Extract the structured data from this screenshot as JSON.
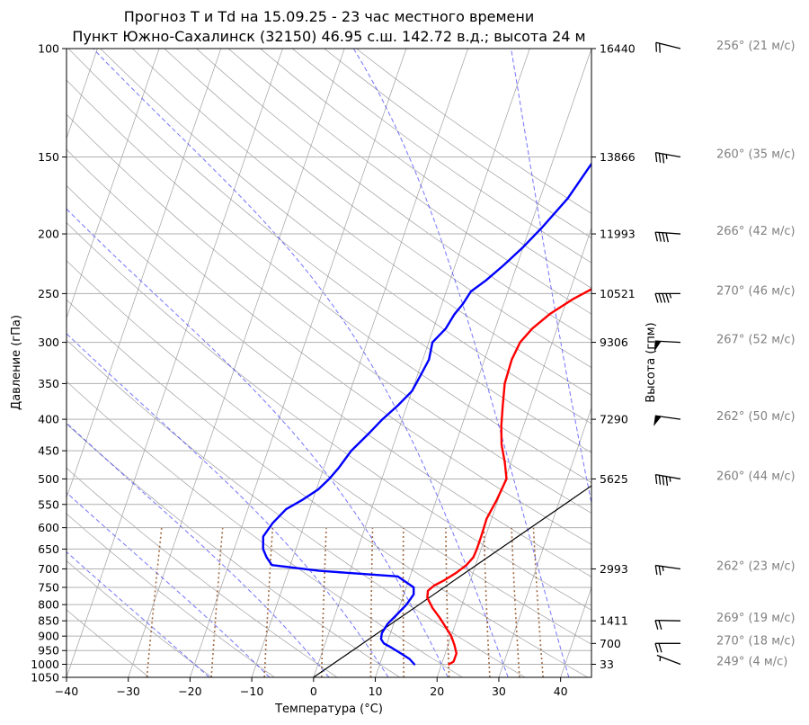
{
  "title_line1": "Прогноз T и Td на 15.09.25 - 23 час местного времени",
  "title_line2": "Пункт Южно-Сахалинск (32150) 46.95 с.ш. 142.72 в.д.; высота 24 м",
  "chart_data": {
    "type": "line",
    "subtype": "skew-T log-P diagram",
    "xlabel": "Температура (°C)",
    "ylabel": "Давление (гПа)",
    "y2label": "Высота (гпм)",
    "xlim": [
      -40,
      45
    ],
    "ylim": [
      1050,
      100
    ],
    "y_scale": "log",
    "x_ticks": [
      -40,
      -30,
      -20,
      -10,
      0,
      10,
      20,
      30,
      40
    ],
    "y_ticks": [
      100,
      150,
      200,
      250,
      300,
      350,
      400,
      450,
      500,
      550,
      600,
      650,
      700,
      750,
      800,
      850,
      900,
      950,
      1000,
      1050
    ],
    "height_ticks": [
      {
        "p": 100,
        "label": "16440"
      },
      {
        "p": 150,
        "label": "13866"
      },
      {
        "p": 200,
        "label": "11993"
      },
      {
        "p": 250,
        "label": "10521"
      },
      {
        "p": 300,
        "label": "9306"
      },
      {
        "p": 400,
        "label": "7290"
      },
      {
        "p": 500,
        "label": "5625"
      },
      {
        "p": 700,
        "label": "2993"
      },
      {
        "p": 850,
        "label": "1411"
      },
      {
        "p": 925,
        "label": "700"
      },
      {
        "p": 1000,
        "label": "33"
      }
    ],
    "grid": true,
    "series": [
      {
        "color": "#ff0000",
        "points": [
          [
            1000,
            21.2
          ],
          [
            990,
            21.8
          ],
          [
            960,
            21.8
          ],
          [
            930,
            21.0
          ],
          [
            900,
            20.0
          ],
          [
            870,
            18.6
          ],
          [
            840,
            17.1
          ],
          [
            810,
            15.4
          ],
          [
            780,
            14.0
          ],
          [
            760,
            13.7
          ],
          [
            745,
            14.4
          ],
          [
            730,
            15.8
          ],
          [
            710,
            17.3
          ],
          [
            690,
            18.5
          ],
          [
            670,
            19.2
          ],
          [
            650,
            19.3
          ],
          [
            620,
            19.3
          ],
          [
            580,
            19.2
          ],
          [
            540,
            19.8
          ],
          [
            500,
            20.2
          ],
          [
            470,
            19.0
          ],
          [
            440,
            17.5
          ],
          [
            410,
            16.4
          ],
          [
            380,
            15.5
          ],
          [
            350,
            14.6
          ],
          [
            320,
            14.4
          ],
          [
            300,
            14.8
          ],
          [
            285,
            16.0
          ],
          [
            270,
            18.0
          ],
          [
            255,
            21.0
          ],
          [
            240,
            25.0
          ],
          [
            225,
            28.6
          ],
          [
            210,
            30.0
          ],
          [
            195,
            31.8
          ],
          [
            180,
            34.3
          ],
          [
            165,
            36.4
          ],
          [
            150,
            38.5
          ],
          [
            135,
            40.5
          ],
          [
            120,
            41.8
          ],
          [
            110,
            43.0
          ],
          [
            100,
            43.9
          ]
        ]
      },
      {
        "color": "#0000ff",
        "points": [
          [
            1000,
            15.6
          ],
          [
            980,
            14.5
          ],
          [
            960,
            12.8
          ],
          [
            940,
            11.0
          ],
          [
            925,
            9.5
          ],
          [
            910,
            8.8
          ],
          [
            890,
            8.6
          ],
          [
            860,
            9.0
          ],
          [
            830,
            10.0
          ],
          [
            800,
            11.0
          ],
          [
            770,
            11.6
          ],
          [
            750,
            11.2
          ],
          [
            720,
            8.0
          ],
          [
            705,
            -5.0
          ],
          [
            690,
            -13.0
          ],
          [
            670,
            -14.3
          ],
          [
            650,
            -15.3
          ],
          [
            620,
            -16.0
          ],
          [
            590,
            -15.2
          ],
          [
            560,
            -13.8
          ],
          [
            540,
            -11.6
          ],
          [
            520,
            -9.7
          ],
          [
            500,
            -8.5
          ],
          [
            480,
            -7.6
          ],
          [
            450,
            -6.5
          ],
          [
            420,
            -4.5
          ],
          [
            400,
            -3.2
          ],
          [
            380,
            -1.5
          ],
          [
            360,
            0.0
          ],
          [
            340,
            0.5
          ],
          [
            320,
            1.0
          ],
          [
            300,
            0.6
          ],
          [
            285,
            2.0
          ],
          [
            270,
            2.6
          ],
          [
            260,
            3.4
          ],
          [
            248,
            4.0
          ],
          [
            238,
            5.8
          ],
          [
            225,
            7.8
          ],
          [
            210,
            10.0
          ],
          [
            195,
            12.0
          ],
          [
            175,
            14.5
          ],
          [
            155,
            16.3
          ],
          [
            140,
            18.0
          ],
          [
            125,
            18.9
          ],
          [
            115,
            19.8
          ],
          [
            105,
            20.6
          ],
          [
            100,
            21.0
          ]
        ]
      }
    ],
    "parcel_line": {
      "color": "#000000",
      "from": [
        1050,
        0
      ],
      "to": [
        370,
        50
      ]
    },
    "background_lines": {
      "isotherm_color": "#808080",
      "dry_adiabat_color": "#808080",
      "moist_adiabat_color": "#0000ff",
      "mixing_ratio_color": "#8b4513"
    },
    "wind_barbs": [
      {
        "p": 100,
        "label": "256° (21 м/с)"
      },
      {
        "p": 150,
        "label": "260° (35 м/с)"
      },
      {
        "p": 200,
        "label": "266° (42 м/с)"
      },
      {
        "p": 250,
        "label": "270° (46 м/с)"
      },
      {
        "p": 300,
        "label": "267° (52 м/с)"
      },
      {
        "p": 400,
        "label": "262° (50 м/с)"
      },
      {
        "p": 500,
        "label": "260° (44 м/с)"
      },
      {
        "p": 700,
        "label": "262° (23 м/с)"
      },
      {
        "p": 850,
        "label": "269° (19 м/с)"
      },
      {
        "p": 925,
        "label": "270° (18 м/с)"
      },
      {
        "p": 1000,
        "label": "249° (4 м/с)"
      }
    ]
  }
}
